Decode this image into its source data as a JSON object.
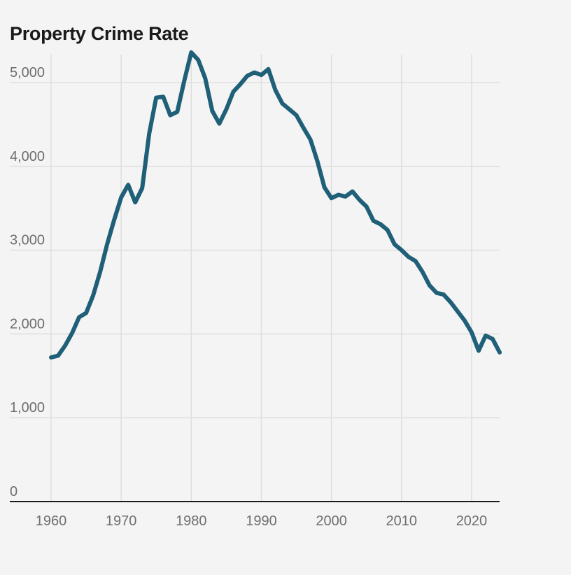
{
  "chart_data": {
    "type": "line",
    "title": "Property Crime Rate",
    "xlabel": "",
    "ylabel": "",
    "xlim": [
      1960,
      2024
    ],
    "ylim": [
      0,
      5000
    ],
    "x_ticks": [
      1960,
      1970,
      1980,
      1990,
      2000,
      2010,
      2020
    ],
    "x_tick_labels": [
      "1960",
      "1970",
      "1980",
      "1990",
      "2000",
      "2010",
      "2020"
    ],
    "y_ticks": [
      0,
      1000,
      2000,
      3000,
      4000,
      5000
    ],
    "y_tick_labels": [
      "0",
      "1,000",
      "2,000",
      "3,000",
      "4,000",
      "5,000"
    ],
    "grid": true,
    "legend": "none",
    "line_color": "#1f6078",
    "series": [
      {
        "x": [
          1960,
          1961,
          1962,
          1963,
          1964,
          1965,
          1966,
          1967,
          1968,
          1969,
          1970,
          1971,
          1972,
          1973,
          1974,
          1975,
          1976,
          1977,
          1978,
          1979,
          1980,
          1981,
          1982,
          1983,
          1984,
          1985,
          1986,
          1987,
          1988,
          1989,
          1990,
          1991,
          1992,
          1993,
          1994,
          1995,
          1996,
          1997,
          1998,
          1999,
          2000,
          2001,
          2002,
          2003,
          2004,
          2005,
          2006,
          2007,
          2008,
          2009,
          2010,
          2011,
          2012,
          2013,
          2014,
          2015,
          2016,
          2017,
          2018,
          2019,
          2020,
          2021,
          2022,
          2023,
          2024
        ],
        "values": [
          1720,
          1740,
          1860,
          2010,
          2200,
          2250,
          2460,
          2740,
          3070,
          3360,
          3630,
          3780,
          3570,
          3740,
          4390,
          4820,
          4830,
          4610,
          4650,
          5020,
          5360,
          5270,
          5050,
          4660,
          4510,
          4680,
          4890,
          4980,
          5080,
          5120,
          5090,
          5160,
          4910,
          4750,
          4680,
          4610,
          4460,
          4320,
          4060,
          3750,
          3620,
          3660,
          3640,
          3700,
          3600,
          3520,
          3350,
          3310,
          3240,
          3070,
          3000,
          2920,
          2870,
          2740,
          2580,
          2490,
          2470,
          2380,
          2270,
          2160,
          2020,
          1800,
          1980,
          1940,
          1780
        ]
      }
    ]
  }
}
